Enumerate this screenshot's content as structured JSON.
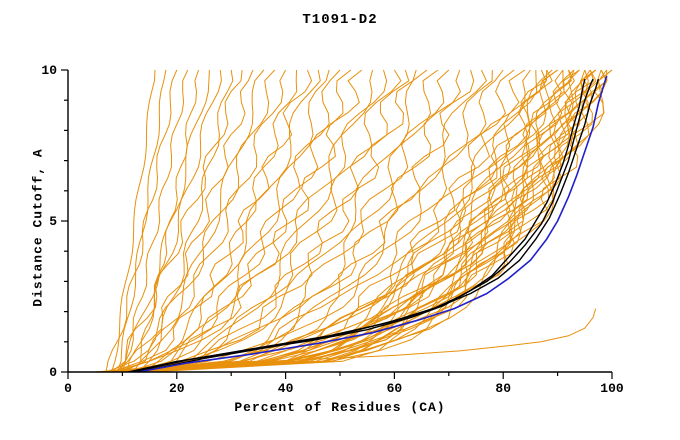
{
  "title": "T1091-D2",
  "chart_data": {
    "type": "line",
    "title": "T1091-D2",
    "xlabel": "Percent of Residues (CA)",
    "ylabel": "Distance Cutoff, A",
    "xlim": [
      0,
      100
    ],
    "ylim": [
      0,
      10
    ],
    "x_major_ticks": [
      0,
      20,
      40,
      60,
      80,
      100
    ],
    "x_minor_step": 10,
    "y_major_ticks": [
      0,
      5,
      10
    ],
    "y_minor_step": 1,
    "grid": false,
    "legend": false,
    "colors": {
      "model_pool": "#E8910C",
      "highlight": "#000000",
      "best": "#2121CC",
      "axis": "#000000",
      "background": "#FFFFFF"
    },
    "series": {
      "best_model_blue": {
        "name": "best-model-curve",
        "color": "#2121CC",
        "points": [
          [
            13,
            0
          ],
          [
            22,
            0.3
          ],
          [
            34,
            0.6
          ],
          [
            46,
            0.95
          ],
          [
            56,
            1.3
          ],
          [
            64,
            1.7
          ],
          [
            71,
            2.1
          ],
          [
            77,
            2.6
          ],
          [
            81,
            3.1
          ],
          [
            85,
            3.7
          ],
          [
            88,
            4.4
          ],
          [
            90,
            5.0
          ],
          [
            92,
            5.8
          ],
          [
            93.5,
            6.5
          ],
          [
            95,
            7.3
          ],
          [
            96.5,
            8.1
          ],
          [
            97.5,
            8.9
          ],
          [
            98.5,
            9.5
          ],
          [
            99,
            9.8
          ]
        ]
      },
      "highlighted_models_black": [
        {
          "points": [
            [
              11,
              0
            ],
            [
              20,
              0.35
            ],
            [
              32,
              0.7
            ],
            [
              45,
              1.05
            ],
            [
              55,
              1.4
            ],
            [
              63,
              1.8
            ],
            [
              69,
              2.2
            ],
            [
              74,
              2.7
            ],
            [
              78,
              3.2
            ],
            [
              81,
              3.8
            ],
            [
              84,
              4.4
            ],
            [
              86,
              5.0
            ],
            [
              88,
              5.6
            ],
            [
              89.5,
              6.2
            ],
            [
              91,
              6.9
            ],
            [
              92,
              7.5
            ],
            [
              93,
              8.2
            ],
            [
              94,
              8.8
            ],
            [
              94.5,
              9.3
            ],
            [
              95,
              9.7
            ]
          ]
        },
        {
          "points": [
            [
              12,
              0
            ],
            [
              22,
              0.4
            ],
            [
              35,
              0.8
            ],
            [
              48,
              1.2
            ],
            [
              58,
              1.6
            ],
            [
              66,
              2.0
            ],
            [
              72,
              2.5
            ],
            [
              77,
              3.0
            ],
            [
              81,
              3.6
            ],
            [
              84,
              4.2
            ],
            [
              87,
              4.9
            ],
            [
              89,
              5.6
            ],
            [
              90.5,
              6.3
            ],
            [
              92,
              7.0
            ],
            [
              93,
              7.7
            ],
            [
              94,
              8.4
            ],
            [
              95,
              9.0
            ],
            [
              96,
              9.5
            ],
            [
              96.5,
              9.7
            ]
          ]
        },
        {
          "points": [
            [
              13,
              0
            ],
            [
              25,
              0.45
            ],
            [
              38,
              0.85
            ],
            [
              50,
              1.25
            ],
            [
              60,
              1.7
            ],
            [
              68,
              2.15
            ],
            [
              74,
              2.6
            ],
            [
              79,
              3.1
            ],
            [
              83,
              3.7
            ],
            [
              86,
              4.4
            ],
            [
              88.5,
              5.1
            ],
            [
              90.5,
              5.9
            ],
            [
              92,
              6.6
            ],
            [
              93.5,
              7.4
            ],
            [
              95,
              8.2
            ],
            [
              96,
              8.9
            ],
            [
              97,
              9.4
            ],
            [
              97.5,
              9.7
            ]
          ]
        }
      ],
      "model_pool_orange": {
        "color": "#E8910C",
        "param_format": [
          "x_at_cutoff0",
          "x_at_cutoff10",
          "shape_exponent"
        ],
        "curve_params": [
          [
            8,
            16,
            0.9
          ],
          [
            9,
            18,
            0.85
          ],
          [
            7,
            20,
            0.8
          ],
          [
            10,
            22,
            0.9
          ],
          [
            12,
            24,
            0.8
          ],
          [
            9,
            26,
            0.75
          ],
          [
            11,
            28,
            0.85
          ],
          [
            13,
            30,
            0.7
          ],
          [
            8,
            32,
            0.8
          ],
          [
            9,
            34,
            0.65
          ],
          [
            12,
            36,
            0.7
          ],
          [
            7,
            38,
            0.6
          ],
          [
            10,
            40,
            0.65
          ],
          [
            14,
            42,
            0.6
          ],
          [
            8,
            44,
            0.55
          ],
          [
            11,
            46,
            0.6
          ],
          [
            13,
            48,
            0.55
          ],
          [
            9,
            50,
            0.5
          ],
          [
            12,
            52,
            0.55
          ],
          [
            10,
            54,
            0.5
          ],
          [
            15,
            56,
            0.5
          ],
          [
            8,
            58,
            0.52
          ],
          [
            10,
            60,
            0.45
          ],
          [
            13,
            62,
            0.48
          ],
          [
            9,
            64,
            0.42
          ],
          [
            11,
            66,
            0.45
          ],
          [
            14,
            68,
            0.4
          ],
          [
            8,
            70,
            0.42
          ],
          [
            12,
            72,
            0.4
          ],
          [
            10,
            74,
            0.38
          ],
          [
            13,
            76,
            0.4
          ],
          [
            9,
            78,
            0.36
          ],
          [
            11,
            80,
            0.38
          ],
          [
            15,
            82,
            0.35
          ],
          [
            10,
            84,
            0.36
          ],
          [
            9,
            85,
            0.34
          ],
          [
            12,
            86,
            0.33
          ],
          [
            10,
            87,
            0.35
          ],
          [
            14,
            88,
            0.32
          ],
          [
            8,
            88,
            0.34
          ],
          [
            11,
            89,
            0.33
          ],
          [
            13,
            90,
            0.31
          ],
          [
            9,
            90,
            0.34
          ],
          [
            12,
            91,
            0.32
          ],
          [
            10,
            91,
            0.3
          ],
          [
            15,
            92,
            0.33
          ],
          [
            8,
            92,
            0.31
          ],
          [
            11,
            93,
            0.3
          ],
          [
            13,
            93,
            0.32
          ],
          [
            9,
            94,
            0.3
          ],
          [
            12,
            94,
            0.28
          ],
          [
            10,
            95,
            0.3
          ],
          [
            14,
            95,
            0.29
          ],
          [
            8,
            96,
            0.3
          ],
          [
            11,
            96,
            0.28
          ],
          [
            13,
            96,
            0.27
          ],
          [
            9,
            97,
            0.29
          ],
          [
            12,
            97,
            0.27
          ],
          [
            10,
            97,
            0.28
          ],
          [
            15,
            98,
            0.27
          ],
          [
            8,
            98,
            0.26
          ],
          [
            11,
            98,
            0.28
          ],
          [
            13,
            99,
            0.26
          ],
          [
            9,
            99,
            0.27
          ],
          [
            12,
            100,
            0.26
          ],
          [
            10,
            100,
            0.25
          ]
        ],
        "outlier_low_curve": [
          [
            5,
            0
          ],
          [
            15,
            0.15
          ],
          [
            30,
            0.3
          ],
          [
            45,
            0.42
          ],
          [
            60,
            0.55
          ],
          [
            72,
            0.7
          ],
          [
            80,
            0.85
          ],
          [
            87,
            1.0
          ],
          [
            92,
            1.2
          ],
          [
            95,
            1.45
          ],
          [
            96.5,
            1.8
          ],
          [
            97,
            2.1
          ]
        ]
      }
    }
  }
}
